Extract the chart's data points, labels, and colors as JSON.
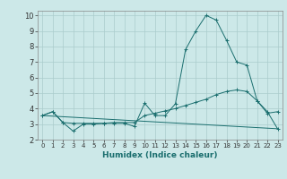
{
  "title": "",
  "xlabel": "Humidex (Indice chaleur)",
  "bg_color": "#cce8e8",
  "grid_color": "#aacccc",
  "line_color": "#1a6e6e",
  "xlim": [
    -0.5,
    23.5
  ],
  "ylim": [
    2,
    10.3
  ],
  "xticks": [
    0,
    1,
    2,
    3,
    4,
    5,
    6,
    7,
    8,
    9,
    10,
    11,
    12,
    13,
    14,
    15,
    16,
    17,
    18,
    19,
    20,
    21,
    22,
    23
  ],
  "yticks": [
    2,
    3,
    4,
    5,
    6,
    7,
    8,
    9,
    10
  ],
  "series": [
    {
      "x": [
        0,
        1,
        2,
        3,
        4,
        5,
        6,
        7,
        8,
        9,
        10,
        11,
        12,
        13,
        14,
        15,
        16,
        17,
        18,
        19,
        20,
        21,
        22,
        23
      ],
      "y": [
        3.55,
        3.8,
        3.1,
        2.55,
        3.0,
        3.0,
        3.05,
        3.05,
        3.05,
        2.85,
        4.35,
        3.55,
        3.55,
        4.3,
        7.8,
        9.0,
        10.0,
        9.7,
        8.4,
        7.0,
        6.8,
        4.5,
        3.7,
        3.8
      ],
      "marker": "+"
    },
    {
      "x": [
        0,
        1,
        2,
        3,
        4,
        5,
        6,
        7,
        8,
        9,
        10,
        11,
        12,
        13,
        14,
        15,
        16,
        17,
        18,
        19,
        20,
        21,
        22,
        23
      ],
      "y": [
        3.55,
        3.8,
        3.1,
        3.05,
        3.05,
        3.05,
        3.05,
        3.1,
        3.1,
        3.1,
        3.55,
        3.7,
        3.85,
        4.0,
        4.2,
        4.4,
        4.6,
        4.9,
        5.1,
        5.2,
        5.1,
        4.5,
        3.8,
        2.7
      ],
      "marker": "+"
    },
    {
      "x": [
        0,
        23
      ],
      "y": [
        3.55,
        2.7
      ],
      "marker": null
    }
  ]
}
